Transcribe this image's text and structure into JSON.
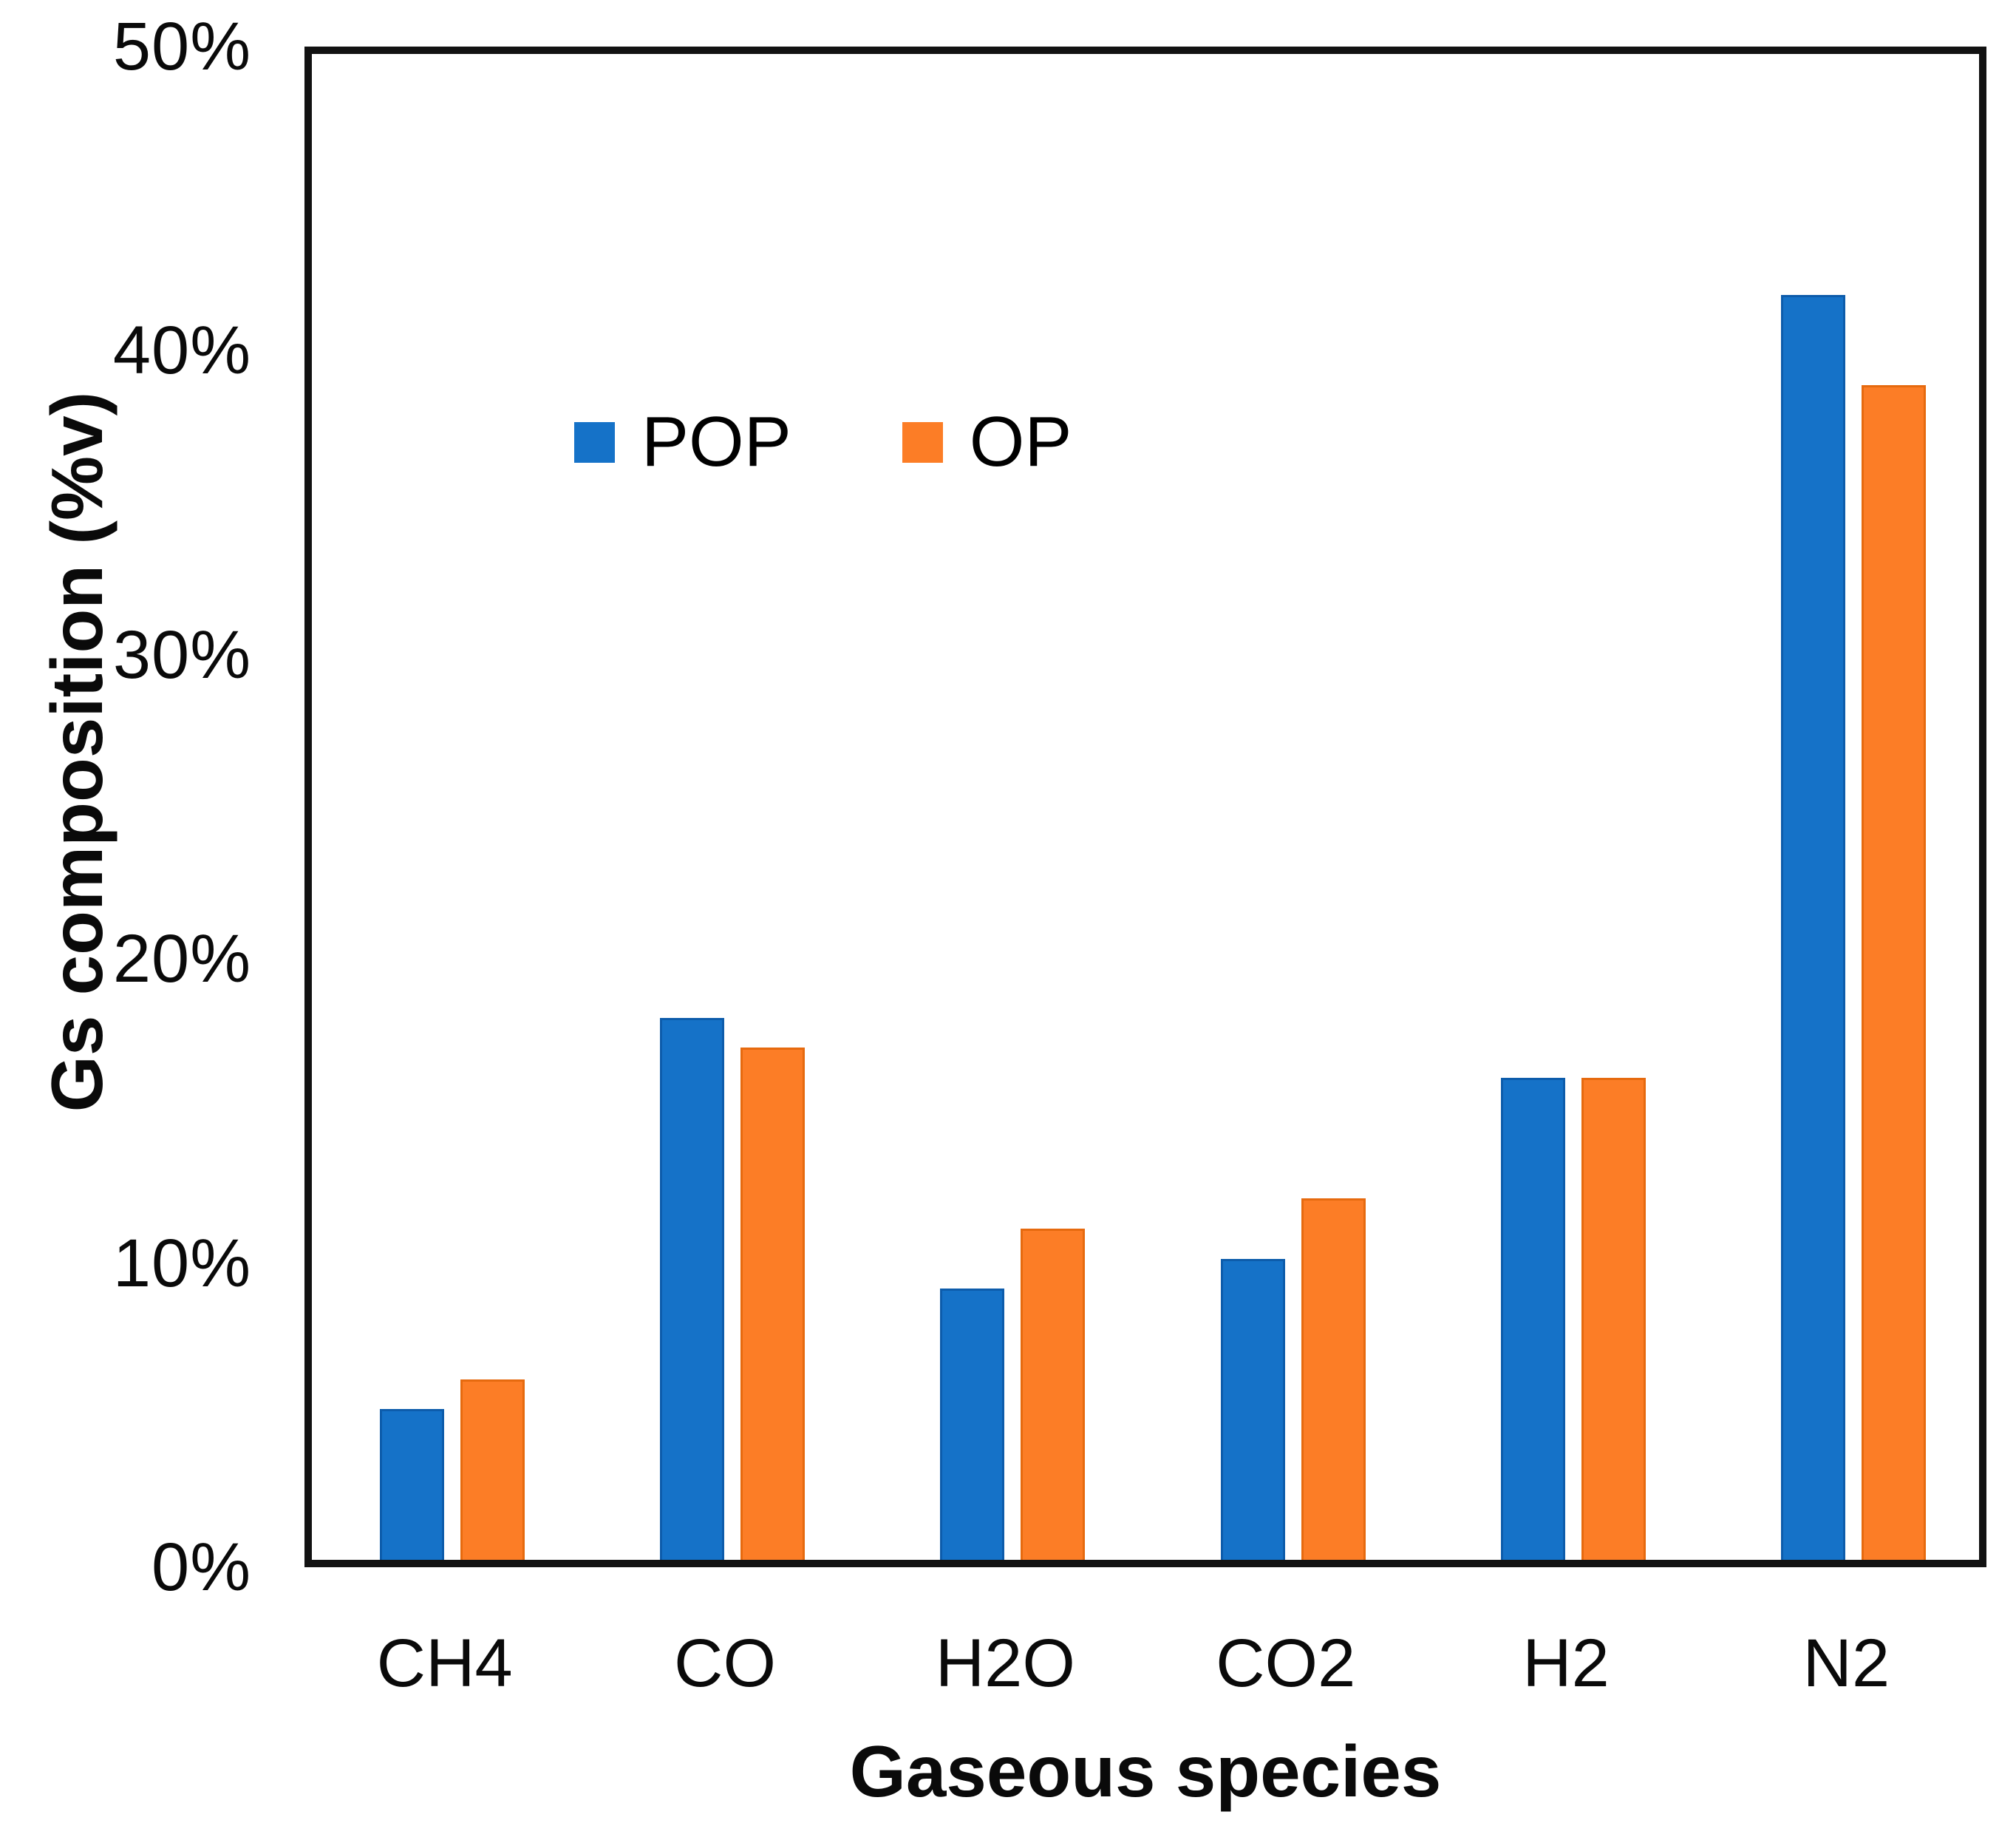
{
  "chart_data": {
    "type": "bar",
    "title": "",
    "categories": [
      "CH4",
      "CO",
      "H2O",
      "CO2",
      "H2",
      "N2"
    ],
    "series": [
      {
        "name": "POP",
        "color": "#1572C8",
        "values": [
          5,
          18,
          9,
          10,
          16,
          42
        ]
      },
      {
        "name": "OP",
        "color": "#FC7D26",
        "values": [
          6,
          17,
          11,
          12,
          16,
          39
        ]
      }
    ],
    "xlabel": "Gaseous species",
    "ylabel": "Gs composition (%v)",
    "ylim": [
      0,
      50
    ],
    "ytick_step": 10,
    "ytick_labels": [
      "0%",
      "10%",
      "20%",
      "30%",
      "40%",
      "50%"
    ],
    "grid": false,
    "legend_position": "inside-upper-left",
    "bar_colors": {
      "POP": "#1572C8",
      "OP": "#FC7D26"
    },
    "axis_color": "#121212"
  }
}
